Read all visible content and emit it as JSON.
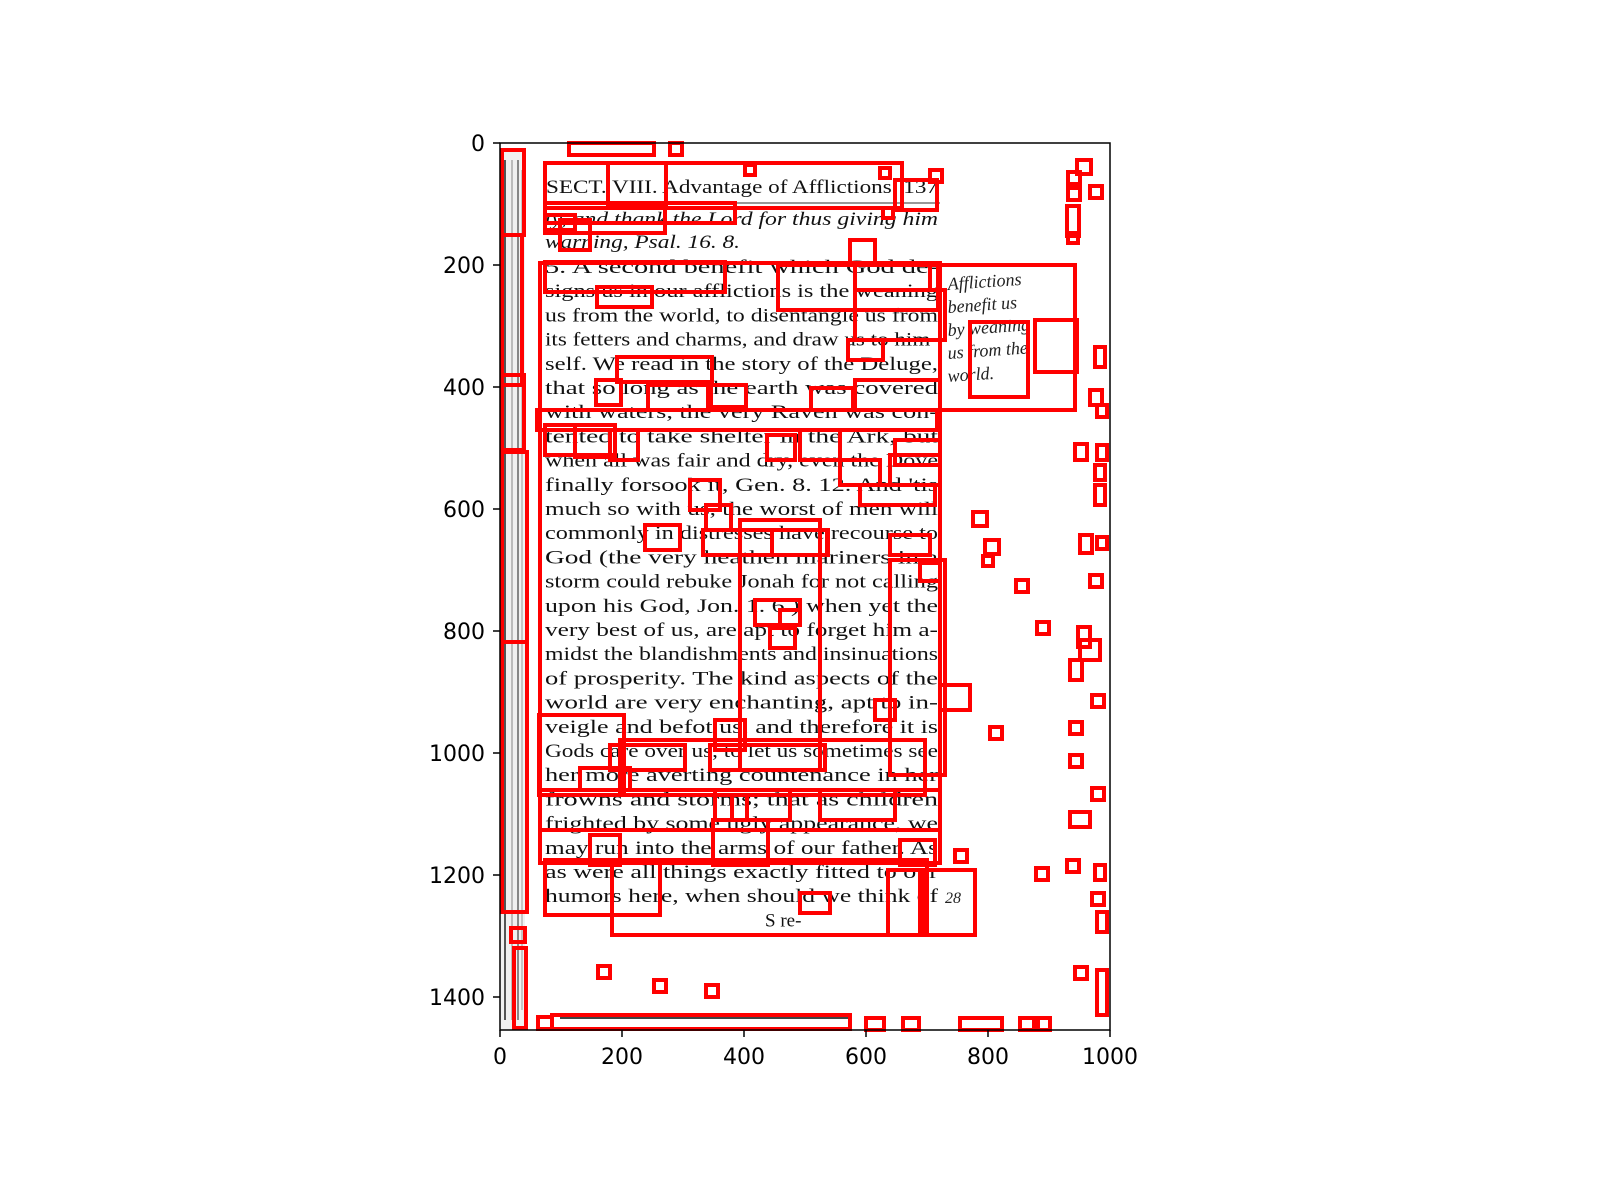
{
  "axes": {
    "x_ticks": [
      "0",
      "200",
      "400",
      "600",
      "800",
      "1000"
    ],
    "y_ticks": [
      "0",
      "200",
      "400",
      "600",
      "800",
      "1000",
      "1200",
      "1400"
    ]
  },
  "scan": {
    "header": "SECT. VIII. Advantage of Afflictions. 137",
    "lines": [
      "ty, and thank the Lord for thus giving him",
      "warning, Psal. 16. 8.",
      "5. A second benefit which God de-",
      "signs us in our afflictions is the weaning",
      "us from the world, to disentangle us from",
      "its fetters and charms, and draw us to him-",
      "self. We read in the story of the Deluge,",
      "that so long as the earth was covered",
      "with waters, the very Raven was con-",
      "tented to take shelter in the Ark, but",
      "when all was fair and dry, even the Dove",
      "finally forsook it, Gen. 8. 12. And 'tis",
      "much so with us, the worst of men will",
      "commonly in distresses have recourse to",
      "God (the very heathen mariners in a",
      "storm could rebuke Jonah for not calling",
      "upon his God, Jon. 1. 6.) when yet the",
      "very best of us, are apt to forget him a-",
      "midst the blandishments and insinuations",
      "of prosperity. The kind aspects of the",
      "world are very enchanting, apt to in-",
      "veigle and befot us, and therefore it is",
      "Gods care over us, to let us sometimes see",
      "her more averting countenance in her",
      "frowns and storms; that as children",
      "frighted by some ugly appearance, we",
      "may run into the arms of our father. As",
      "as were all things exactly fitted to our",
      "humors here, when should we think of",
      "S re-"
    ],
    "marginal_note": [
      "Afflictions",
      "benefit us",
      "by weaning",
      "us from the",
      "world."
    ],
    "catchword_note": "28"
  }
}
